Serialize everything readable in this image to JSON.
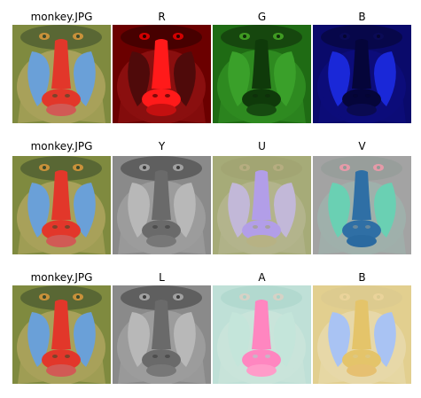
{
  "rows": [
    {
      "titles": [
        "monkey.JPG",
        "R",
        "G",
        "B"
      ],
      "panels": [
        "rgb",
        "red",
        "green",
        "blue"
      ]
    },
    {
      "titles": [
        "monkey.JPG",
        "Y",
        "U",
        "V"
      ],
      "panels": [
        "rgb",
        "gray",
        "u",
        "v"
      ]
    },
    {
      "titles": [
        "monkey.JPG",
        "L",
        "A",
        "B"
      ],
      "panels": [
        "rgb",
        "gray",
        "a",
        "b"
      ]
    }
  ],
  "palettes": {
    "rgb": {
      "bg": "#7f8a3f",
      "fur": "#a8a15a",
      "nose": "#e2372a",
      "cheek": "#6aa0d8",
      "eye": "#c9913a",
      "dark": "#3a4a2c",
      "mouth": "#d15a55"
    },
    "red": {
      "bg": "#6b0000",
      "fur": "#8a0f0f",
      "nose": "#ff1a1a",
      "cheek": "#4f0a0a",
      "eye": "#d10000",
      "dark": "#2a0000",
      "mouth": "#c41010"
    },
    "green": {
      "bg": "#1f6b14",
      "fur": "#2e8a20",
      "nose": "#0f3a0a",
      "cheek": "#3aa02a",
      "eye": "#3f9a22",
      "dark": "#0f2a0a",
      "mouth": "#164a10"
    },
    "blue": {
      "bg": "#0a0a6b",
      "fur": "#0c0c7a",
      "nose": "#05053a",
      "cheek": "#1a28d8",
      "eye": "#0a0a55",
      "dark": "#050530",
      "mouth": "#0a0a50"
    },
    "gray": {
      "bg": "#8a8a8a",
      "fur": "#9c9c9c",
      "nose": "#6a6a6a",
      "cheek": "#b8b8b8",
      "eye": "#a0a0a0",
      "dark": "#3c3c3c",
      "mouth": "#777777"
    },
    "u": {
      "bg": "#a6ab78",
      "fur": "#b3b48c",
      "nose": "#b29ee8",
      "cheek": "#c2b8d8",
      "eye": "#b6ad80",
      "dark": "#9ea170",
      "mouth": "#b7b284"
    },
    "v": {
      "bg": "#a3a3a3",
      "fur": "#9fb0ab",
      "nose": "#2f6fa5",
      "cheek": "#6ad0b3",
      "eye": "#e59aa8",
      "dark": "#8f9a96",
      "mouth": "#2a6aa0"
    },
    "a": {
      "bg": "#bfe0d7",
      "fur": "#c9e4da",
      "nose": "#ff86c0",
      "cheek": "#c4e5da",
      "eye": "#d6d2c6",
      "dark": "#a8d4c9",
      "mouth": "#ff9cc9"
    },
    "b": {
      "bg": "#e2cf8f",
      "fur": "#e7d8a8",
      "nose": "#e4c46a",
      "cheek": "#a9c3f3",
      "eye": "#ead39a",
      "dark": "#d9c98f",
      "mouth": "#e6c071"
    }
  }
}
